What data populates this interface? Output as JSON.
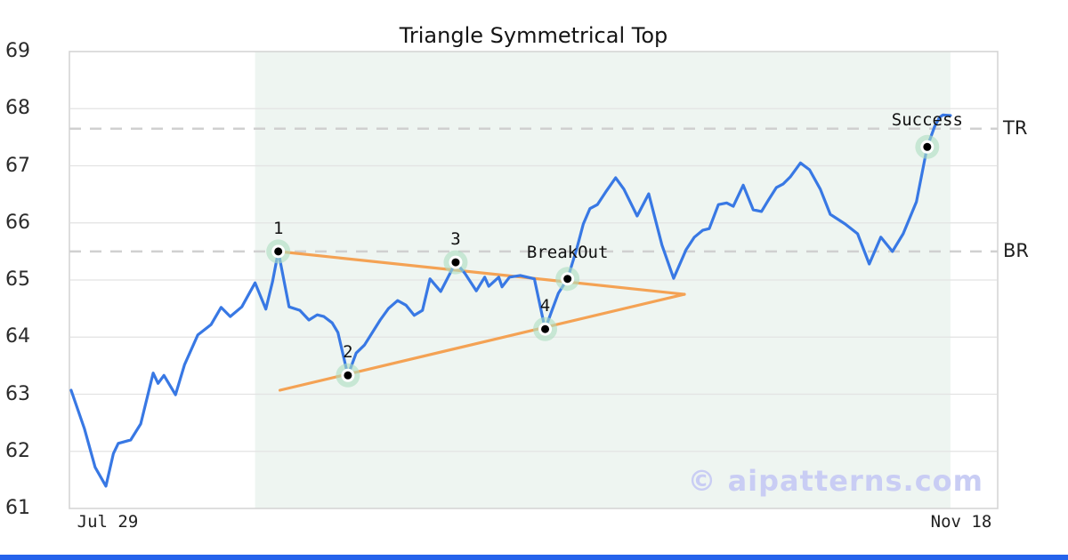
{
  "title": "Triangle Symmetrical Top",
  "watermark": "© aipatterns.com",
  "colors": {
    "price_line": "#3878e4",
    "trendline": "#f4a254",
    "level_dash": "#d0d0d0",
    "gridline": "#e3e3e3",
    "plot_border": "#d5d5d5",
    "pattern_zone": "#eef5f1",
    "marker_halo": "rgba(173,222,193,0.6)",
    "marker_dot": "#000000",
    "watermark": "#c9cdf4",
    "brand_bar": "#2563eb"
  },
  "chart_data": {
    "type": "line",
    "title": "Triangle Symmetrical Top",
    "ylabel": "",
    "xlabel": "",
    "ylim": [
      61,
      69
    ],
    "y_ticks": [
      61,
      62,
      63,
      64,
      65,
      66,
      67,
      68,
      69
    ],
    "x_ticks": [
      {
        "label": "Jul 29",
        "day": 4.6
      },
      {
        "label": "Nov 18",
        "day": 107.6
      }
    ],
    "grid": "horizontal",
    "series": [
      {
        "name": "price",
        "points": [
          [
            0.2,
            63.07
          ],
          [
            1.8,
            62.4
          ],
          [
            3.1,
            61.72
          ],
          [
            4.4,
            61.39
          ],
          [
            5.3,
            61.96
          ],
          [
            5.9,
            62.14
          ],
          [
            7.4,
            62.2
          ],
          [
            8.6,
            62.48
          ],
          [
            10.1,
            63.37
          ],
          [
            10.7,
            63.19
          ],
          [
            11.4,
            63.33
          ],
          [
            12.8,
            62.99
          ],
          [
            13.9,
            63.52
          ],
          [
            15.5,
            64.04
          ],
          [
            17.1,
            64.22
          ],
          [
            18.3,
            64.52
          ],
          [
            19.4,
            64.36
          ],
          [
            20.8,
            64.53
          ],
          [
            22.4,
            64.95
          ],
          [
            23.7,
            64.49
          ],
          [
            24.5,
            64.97
          ],
          [
            25.2,
            65.5
          ],
          [
            26.5,
            64.53
          ],
          [
            27.8,
            64.47
          ],
          [
            28.9,
            64.3
          ],
          [
            29.9,
            64.39
          ],
          [
            30.7,
            64.36
          ],
          [
            31.7,
            64.25
          ],
          [
            32.4,
            64.08
          ],
          [
            33.6,
            63.33
          ],
          [
            34.6,
            63.72
          ],
          [
            35.6,
            63.86
          ],
          [
            37.5,
            64.3
          ],
          [
            38.5,
            64.5
          ],
          [
            39.6,
            64.64
          ],
          [
            40.6,
            64.56
          ],
          [
            41.6,
            64.38
          ],
          [
            42.6,
            64.47
          ],
          [
            43.5,
            65.02
          ],
          [
            44.8,
            64.8
          ],
          [
            46.6,
            65.31
          ],
          [
            47.7,
            65.12
          ],
          [
            49.1,
            64.81
          ],
          [
            50.1,
            65.05
          ],
          [
            50.6,
            64.89
          ],
          [
            51.8,
            65.05
          ],
          [
            52.2,
            64.88
          ],
          [
            53.1,
            65.05
          ],
          [
            54.4,
            65.08
          ],
          [
            56.1,
            65.02
          ],
          [
            57.4,
            64.14
          ],
          [
            58.2,
            64.46
          ],
          [
            59.0,
            64.77
          ],
          [
            60.1,
            65.02
          ],
          [
            61.2,
            65.54
          ],
          [
            62.0,
            65.98
          ],
          [
            62.8,
            66.25
          ],
          [
            63.7,
            66.32
          ],
          [
            64.7,
            66.54
          ],
          [
            65.9,
            66.79
          ],
          [
            66.9,
            66.59
          ],
          [
            68.5,
            66.12
          ],
          [
            69.9,
            66.51
          ],
          [
            71.5,
            65.61
          ],
          [
            72.9,
            65.03
          ],
          [
            74.4,
            65.53
          ],
          [
            75.4,
            65.75
          ],
          [
            76.4,
            65.87
          ],
          [
            77.2,
            65.9
          ],
          [
            78.3,
            66.32
          ],
          [
            79.3,
            66.35
          ],
          [
            80.1,
            66.29
          ],
          [
            81.3,
            66.66
          ],
          [
            82.5,
            66.23
          ],
          [
            83.5,
            66.2
          ],
          [
            84.3,
            66.39
          ],
          [
            85.3,
            66.62
          ],
          [
            86.1,
            66.68
          ],
          [
            87.0,
            66.81
          ],
          [
            88.2,
            67.05
          ],
          [
            89.3,
            66.93
          ],
          [
            90.6,
            66.59
          ],
          [
            91.8,
            66.15
          ],
          [
            93.6,
            65.98
          ],
          [
            95.1,
            65.81
          ],
          [
            96.5,
            65.28
          ],
          [
            97.9,
            65.75
          ],
          [
            99.3,
            65.5
          ],
          [
            100.6,
            65.81
          ],
          [
            102.2,
            66.37
          ],
          [
            103.5,
            67.33
          ],
          [
            104.4,
            67.69
          ],
          [
            105.0,
            67.85
          ],
          [
            105.4,
            67.89
          ],
          [
            106.3,
            67.88
          ]
        ]
      }
    ],
    "levels": [
      {
        "label": "TR",
        "value": 67.65
      },
      {
        "label": "BR",
        "value": 65.5
      }
    ],
    "trendlines": [
      {
        "name": "upper",
        "from": [
          25.2,
          65.5
        ],
        "to": [
          74.2,
          64.75
        ]
      },
      {
        "name": "lower",
        "from": [
          25.4,
          63.07
        ],
        "to": [
          74.2,
          64.75
        ]
      }
    ],
    "pattern_zone": {
      "from_day": 22.4,
      "to_day": 106.3
    },
    "markers": [
      {
        "label": "1",
        "day": 25.2,
        "value": 65.5
      },
      {
        "label": "2",
        "day": 33.6,
        "value": 63.33
      },
      {
        "label": "3",
        "day": 46.6,
        "value": 65.31
      },
      {
        "label": "4",
        "day": 57.4,
        "value": 64.14
      },
      {
        "label": "BreakOut",
        "day": 60.1,
        "value": 65.02
      },
      {
        "label": "Success",
        "day": 103.5,
        "value": 67.33
      }
    ]
  }
}
